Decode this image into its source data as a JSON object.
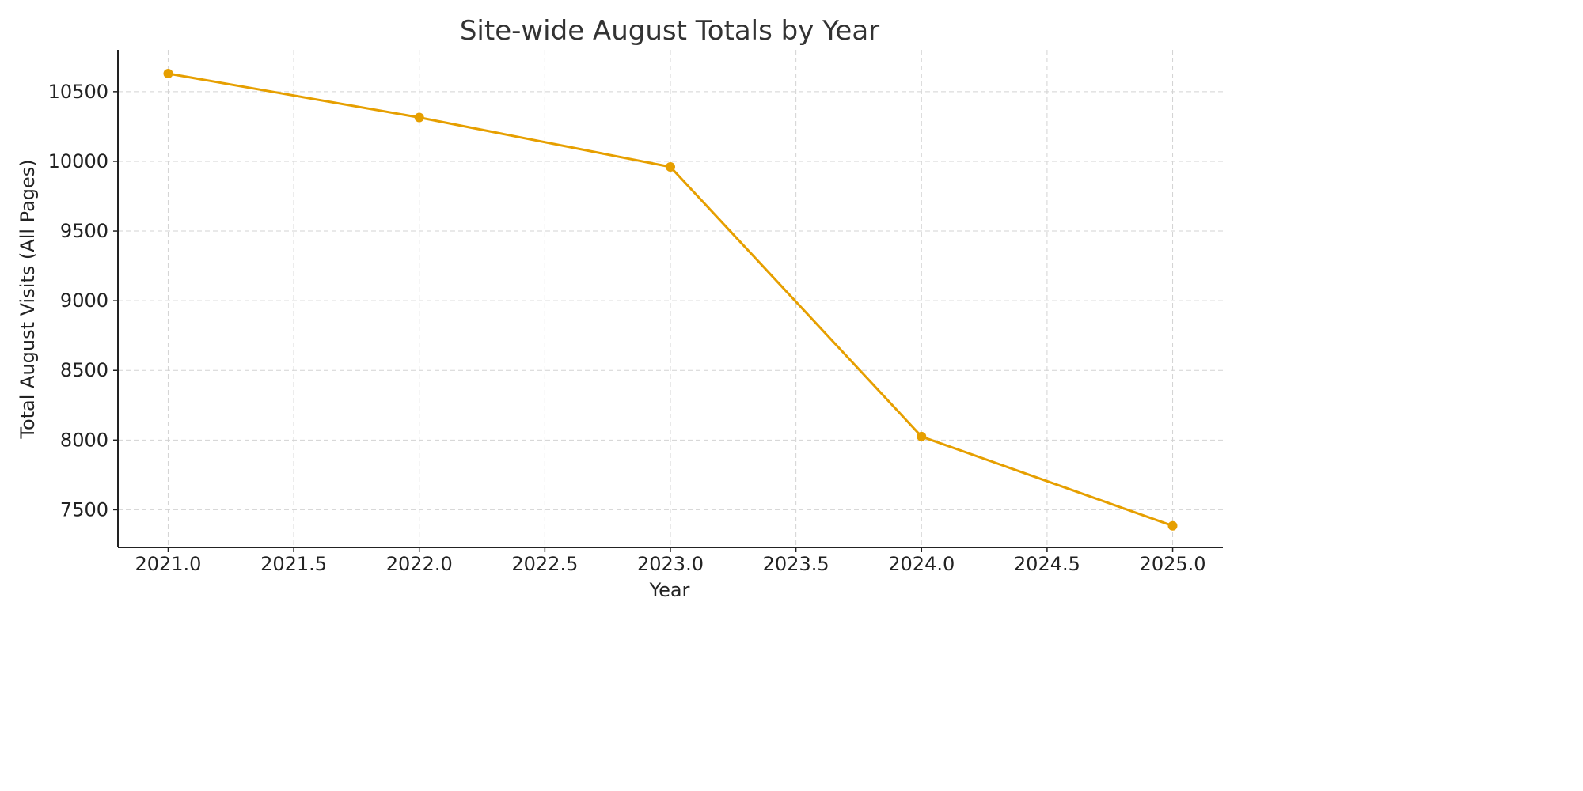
{
  "chart_data": {
    "type": "line",
    "title": "Site-wide August Totals by Year",
    "xlabel": "Year",
    "ylabel": "Total August Visits (All Pages)",
    "x": [
      2021,
      2022,
      2023,
      2024,
      2025
    ],
    "series": [
      {
        "values": [
          10630,
          10315,
          9960,
          8025,
          7385
        ],
        "color": "#E69F00",
        "marker": "circle"
      }
    ],
    "xlim": [
      2020.8,
      2025.2
    ],
    "ylim": [
      7230,
      10800
    ],
    "x_ticks": [
      2021.0,
      2021.5,
      2022.0,
      2022.5,
      2023.0,
      2023.5,
      2024.0,
      2024.5,
      2025.0
    ],
    "x_tick_labels": [
      "2021.0",
      "2021.5",
      "2022.0",
      "2022.5",
      "2023.0",
      "2023.5",
      "2024.0",
      "2024.5",
      "2025.0"
    ],
    "y_ticks": [
      7500,
      8000,
      8500,
      9000,
      9500,
      10000,
      10500
    ],
    "y_tick_labels": [
      "7500",
      "8000",
      "8500",
      "9000",
      "9500",
      "10000",
      "10500"
    ],
    "grid": true,
    "grid_style": "dashed"
  }
}
